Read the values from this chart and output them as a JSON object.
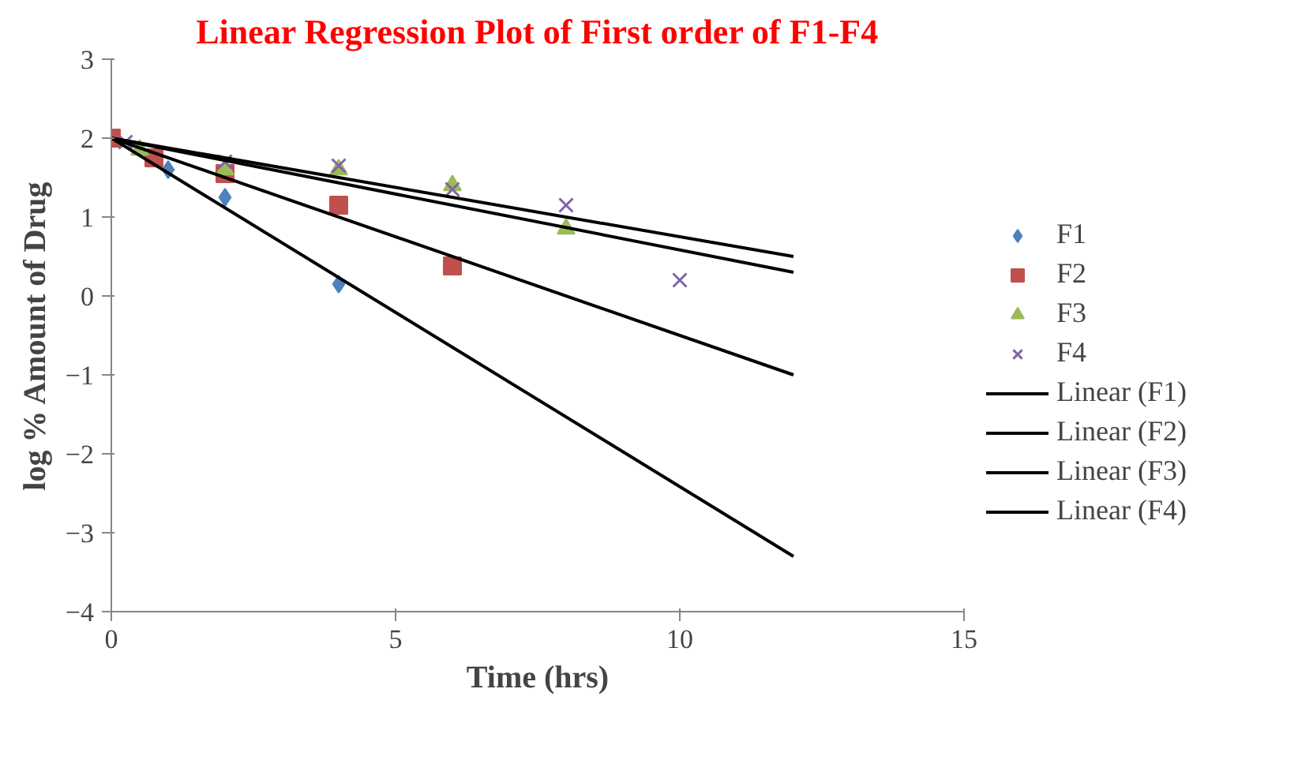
{
  "chart_data": {
    "type": "scatter",
    "title": "Linear Regression Plot of First order of F1-F4",
    "xlabel": "Time (hrs)",
    "ylabel": "log % Amount of Drug",
    "xlim": [
      0,
      15
    ],
    "xticks": [
      0,
      5,
      10,
      15
    ],
    "ylim": [
      -4,
      3
    ],
    "yticks": [
      -4,
      -3,
      -2,
      -1,
      0,
      1,
      2,
      3
    ],
    "grid": false,
    "legend": "right",
    "series": [
      {
        "name": "F1",
        "color": "#4f81bd",
        "marker": "diamond",
        "x": [
          1,
          2,
          4
        ],
        "values": [
          1.6,
          1.25,
          0.15
        ]
      },
      {
        "name": "F2",
        "color": "#c0504d",
        "marker": "square",
        "x": [
          0,
          0.75,
          2,
          4,
          6
        ],
        "values": [
          2.0,
          1.75,
          1.55,
          1.15,
          0.38
        ]
      },
      {
        "name": "F3",
        "color": "#9bbb59",
        "marker": "triangle",
        "x": [
          0.5,
          2,
          4,
          6,
          8
        ],
        "values": [
          1.85,
          1.6,
          1.6,
          1.4,
          0.85
        ]
      },
      {
        "name": "F4",
        "color": "#8064a2",
        "marker": "x",
        "x": [
          0.25,
          2,
          4,
          6,
          8,
          10
        ],
        "values": [
          1.95,
          1.7,
          1.65,
          1.35,
          1.15,
          0.2
        ]
      },
      {
        "name": "Linear (F1)",
        "type": "line",
        "color": "#000000",
        "x": [
          0,
          12
        ],
        "values": [
          2.0,
          -3.3
        ]
      },
      {
        "name": "Linear (F2)",
        "type": "line",
        "color": "#000000",
        "x": [
          0,
          12
        ],
        "values": [
          2.0,
          -1.0
        ]
      },
      {
        "name": "Linear (F3)",
        "type": "line",
        "color": "#000000",
        "x": [
          0,
          12
        ],
        "values": [
          2.0,
          0.3
        ]
      },
      {
        "name": "Linear (F4)",
        "type": "line",
        "color": "#000000",
        "x": [
          0,
          12
        ],
        "values": [
          2.0,
          0.5
        ]
      }
    ]
  }
}
